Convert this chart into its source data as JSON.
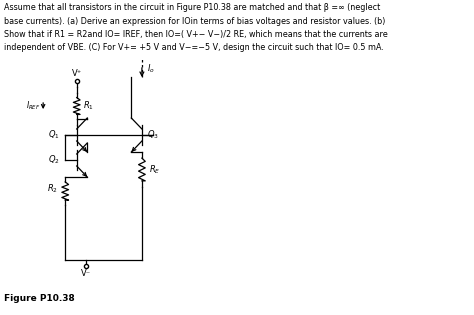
{
  "bg_color": "#ffffff",
  "line_color": "#000000",
  "figure_label": "Figure P10.38",
  "text_line1": "Assume that all transistors in the circuit in Figure P10.38 are matched and that β =∞ (neglect",
  "text_line2": "base currents). (a) Derive an expression for IOin terms of bias voltages and resistor values. (b)",
  "text_line3": "Show that if R1 = R2and IO= IREF, then IO=( V+− V−)/2 RE, which means that the currents are",
  "text_line4": "independent of VBE. (C) For V+= +5 V and V−=−5 V, design the circuit such that IO= 0.5 mA.",
  "font_size_text": 5.8,
  "font_size_label": 6.5,
  "font_size_circuit": 6.0,
  "lw": 0.9
}
